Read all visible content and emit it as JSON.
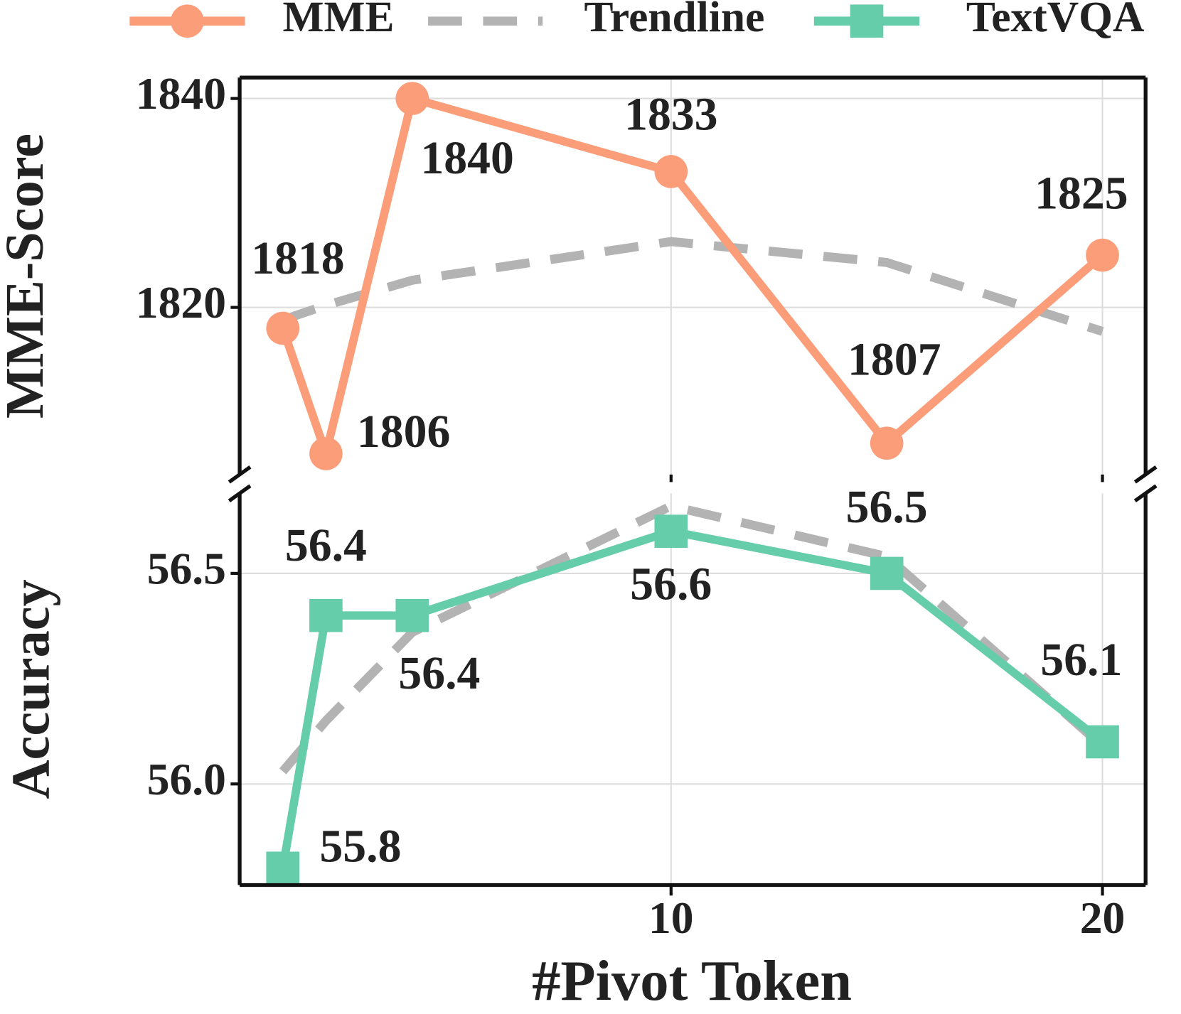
{
  "chart_data": {
    "type": "line",
    "x": [
      1,
      2,
      4,
      10,
      15,
      20
    ],
    "xlim": [
      0,
      21
    ],
    "xticks": [
      10,
      20
    ],
    "xlabel": "#Pivot Token",
    "legend": "top",
    "grid": true,
    "panels": [
      {
        "ylabel": "MME-Score",
        "ylim": [
          1804,
          1842
        ],
        "yticks": [
          1820,
          1840
        ],
        "series": [
          {
            "name": "MME",
            "color": "#fc9d7a",
            "marker": "circle",
            "values": [
              1818,
              1806,
              1840,
              1833,
              1807,
              1825
            ]
          },
          {
            "name": "Trendline",
            "color": "#b3b3b3",
            "dashed": true,
            "values": [
              1818.8,
              1820.2,
              1822.6,
              1826.3,
              1824.3,
              1817.7
            ]
          }
        ]
      },
      {
        "ylabel": "Accuracy",
        "ylim": [
          55.76,
          56.69
        ],
        "yticks": [
          {
            "value": 56.0,
            "label": "56.0"
          },
          56.5
        ],
        "series": [
          {
            "name": "TextVQA",
            "color": "#66cdaa",
            "marker": "square",
            "values": [
              55.8,
              56.4,
              56.4,
              56.6,
              56.5,
              56.1
            ]
          },
          {
            "color": "#b3b3b3",
            "dashed": true,
            "values": [
              56.03,
              56.15,
              56.36,
              56.66,
              56.54,
              56.09
            ]
          }
        ]
      }
    ]
  }
}
